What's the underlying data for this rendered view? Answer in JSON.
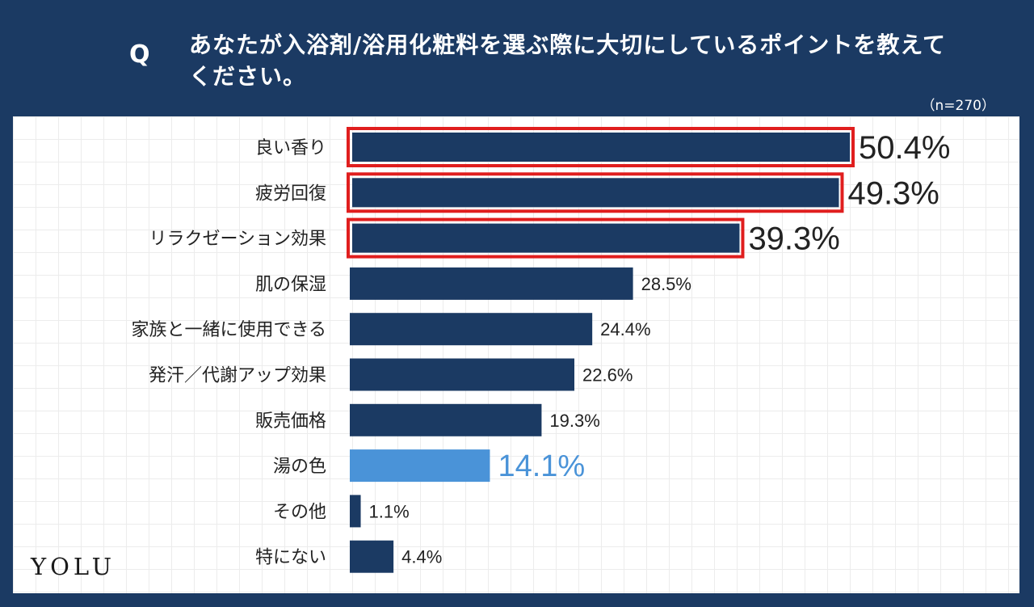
{
  "header": {
    "q_mark": "Q",
    "question": "あなたが入浴剤/浴用化粧料を選ぶ際に大切にしているポイントを教えてください。",
    "sample": "（n=270）"
  },
  "logo": "YOLU",
  "colors": {
    "background": "#1b3a63",
    "bar": "#1b3a63",
    "highlight_bar": "#4a93d8",
    "top_outline": "#e01e1e",
    "label_text": "#222222",
    "highlight_text": "#4a93d8"
  },
  "chart_data": {
    "type": "bar",
    "orientation": "horizontal",
    "title": "あなたが入浴剤/浴用化粧料を選ぶ際に大切にしているポイントを教えてください。",
    "categories": [
      "良い香り",
      "疲労回復",
      "リラクゼーション効果",
      "肌の保湿",
      "家族と一緒に使用できる",
      "発汗／代謝アップ効果",
      "販売価格",
      "湯の色",
      "その他",
      "特にない"
    ],
    "values": [
      50.4,
      49.3,
      39.3,
      28.5,
      24.4,
      22.6,
      19.3,
      14.1,
      1.1,
      4.4
    ],
    "value_labels": [
      "50.4%",
      "49.3%",
      "39.3%",
      "28.5%",
      "24.4%",
      "22.6%",
      "19.3%",
      "14.1%",
      "1.1%",
      "4.4%"
    ],
    "unit": "%",
    "outlined_top": 3,
    "highlighted_index": 7,
    "xlim": [
      0,
      50.4
    ]
  }
}
